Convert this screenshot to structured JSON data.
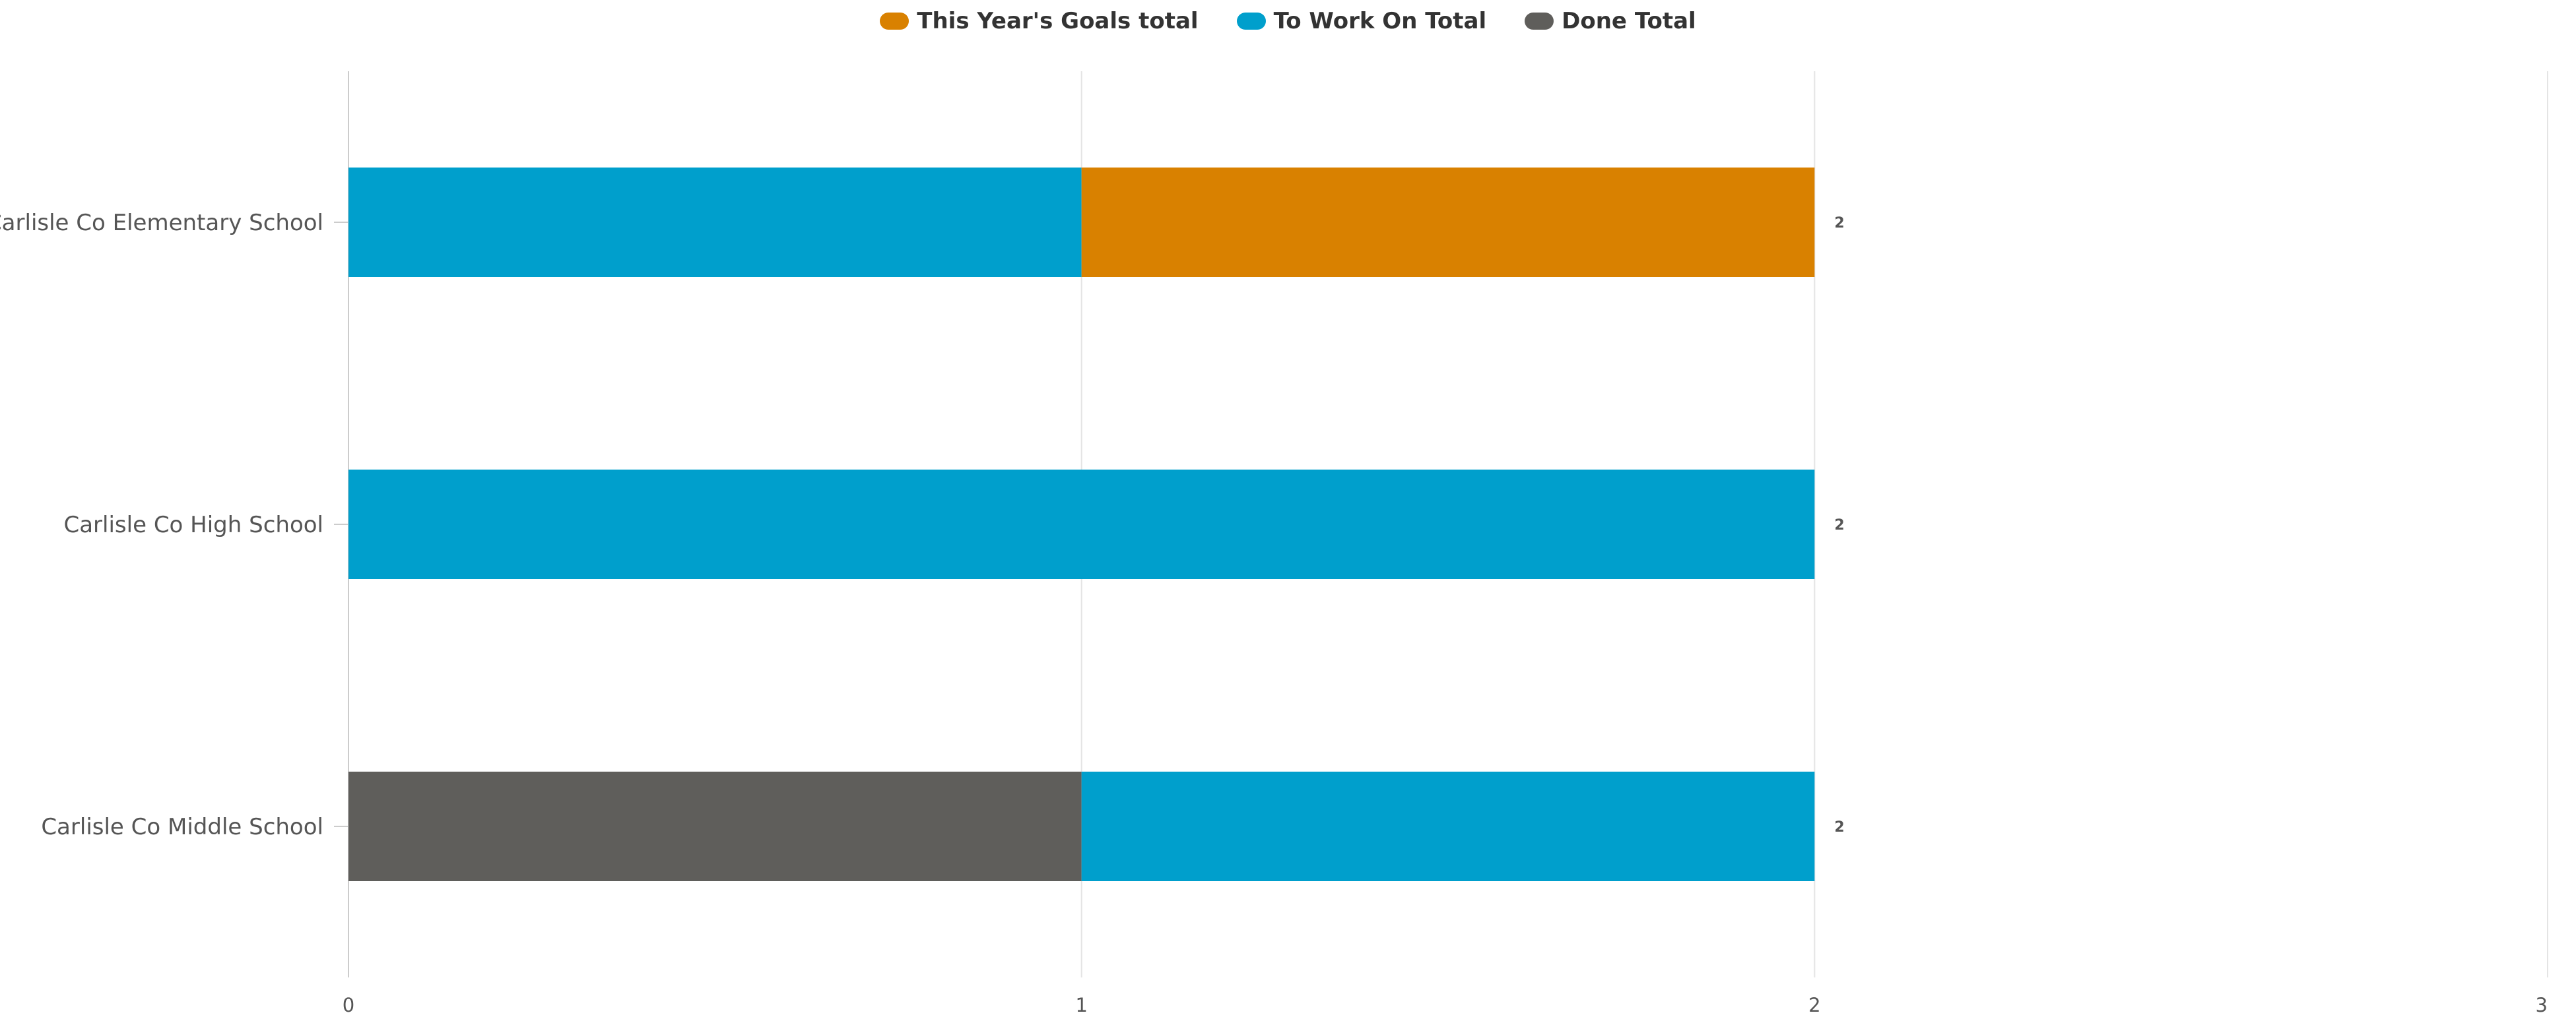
{
  "chart_data": {
    "type": "bar",
    "orientation": "horizontal",
    "stacked": true,
    "title": "",
    "xlabel": "",
    "ylabel": "",
    "categories": [
      "Carlisle Co Elementary School",
      "Carlisle Co High School",
      "Carlisle Co Middle School"
    ],
    "series": [
      {
        "name": "This Year's Goals total",
        "color": "#D98100",
        "values": [
          1,
          0,
          0
        ]
      },
      {
        "name": "To Work On Total",
        "color": "#009FCC",
        "values": [
          1,
          2,
          1
        ]
      },
      {
        "name": "Done Total",
        "color": "#5F5E5B",
        "values": [
          0,
          0,
          1
        ]
      }
    ],
    "stack_order": [
      "Done Total",
      "To Work On Total",
      "This Year's Goals total"
    ],
    "totals": [
      2,
      2,
      2
    ],
    "total_labels": [
      "2",
      "2",
      "2"
    ],
    "xlim": [
      0,
      3
    ],
    "x_ticks": [
      0,
      1,
      2,
      3
    ],
    "x_tick_labels": [
      "0",
      "1",
      "2",
      "3"
    ],
    "grid": true,
    "legend_position": "top-center"
  }
}
